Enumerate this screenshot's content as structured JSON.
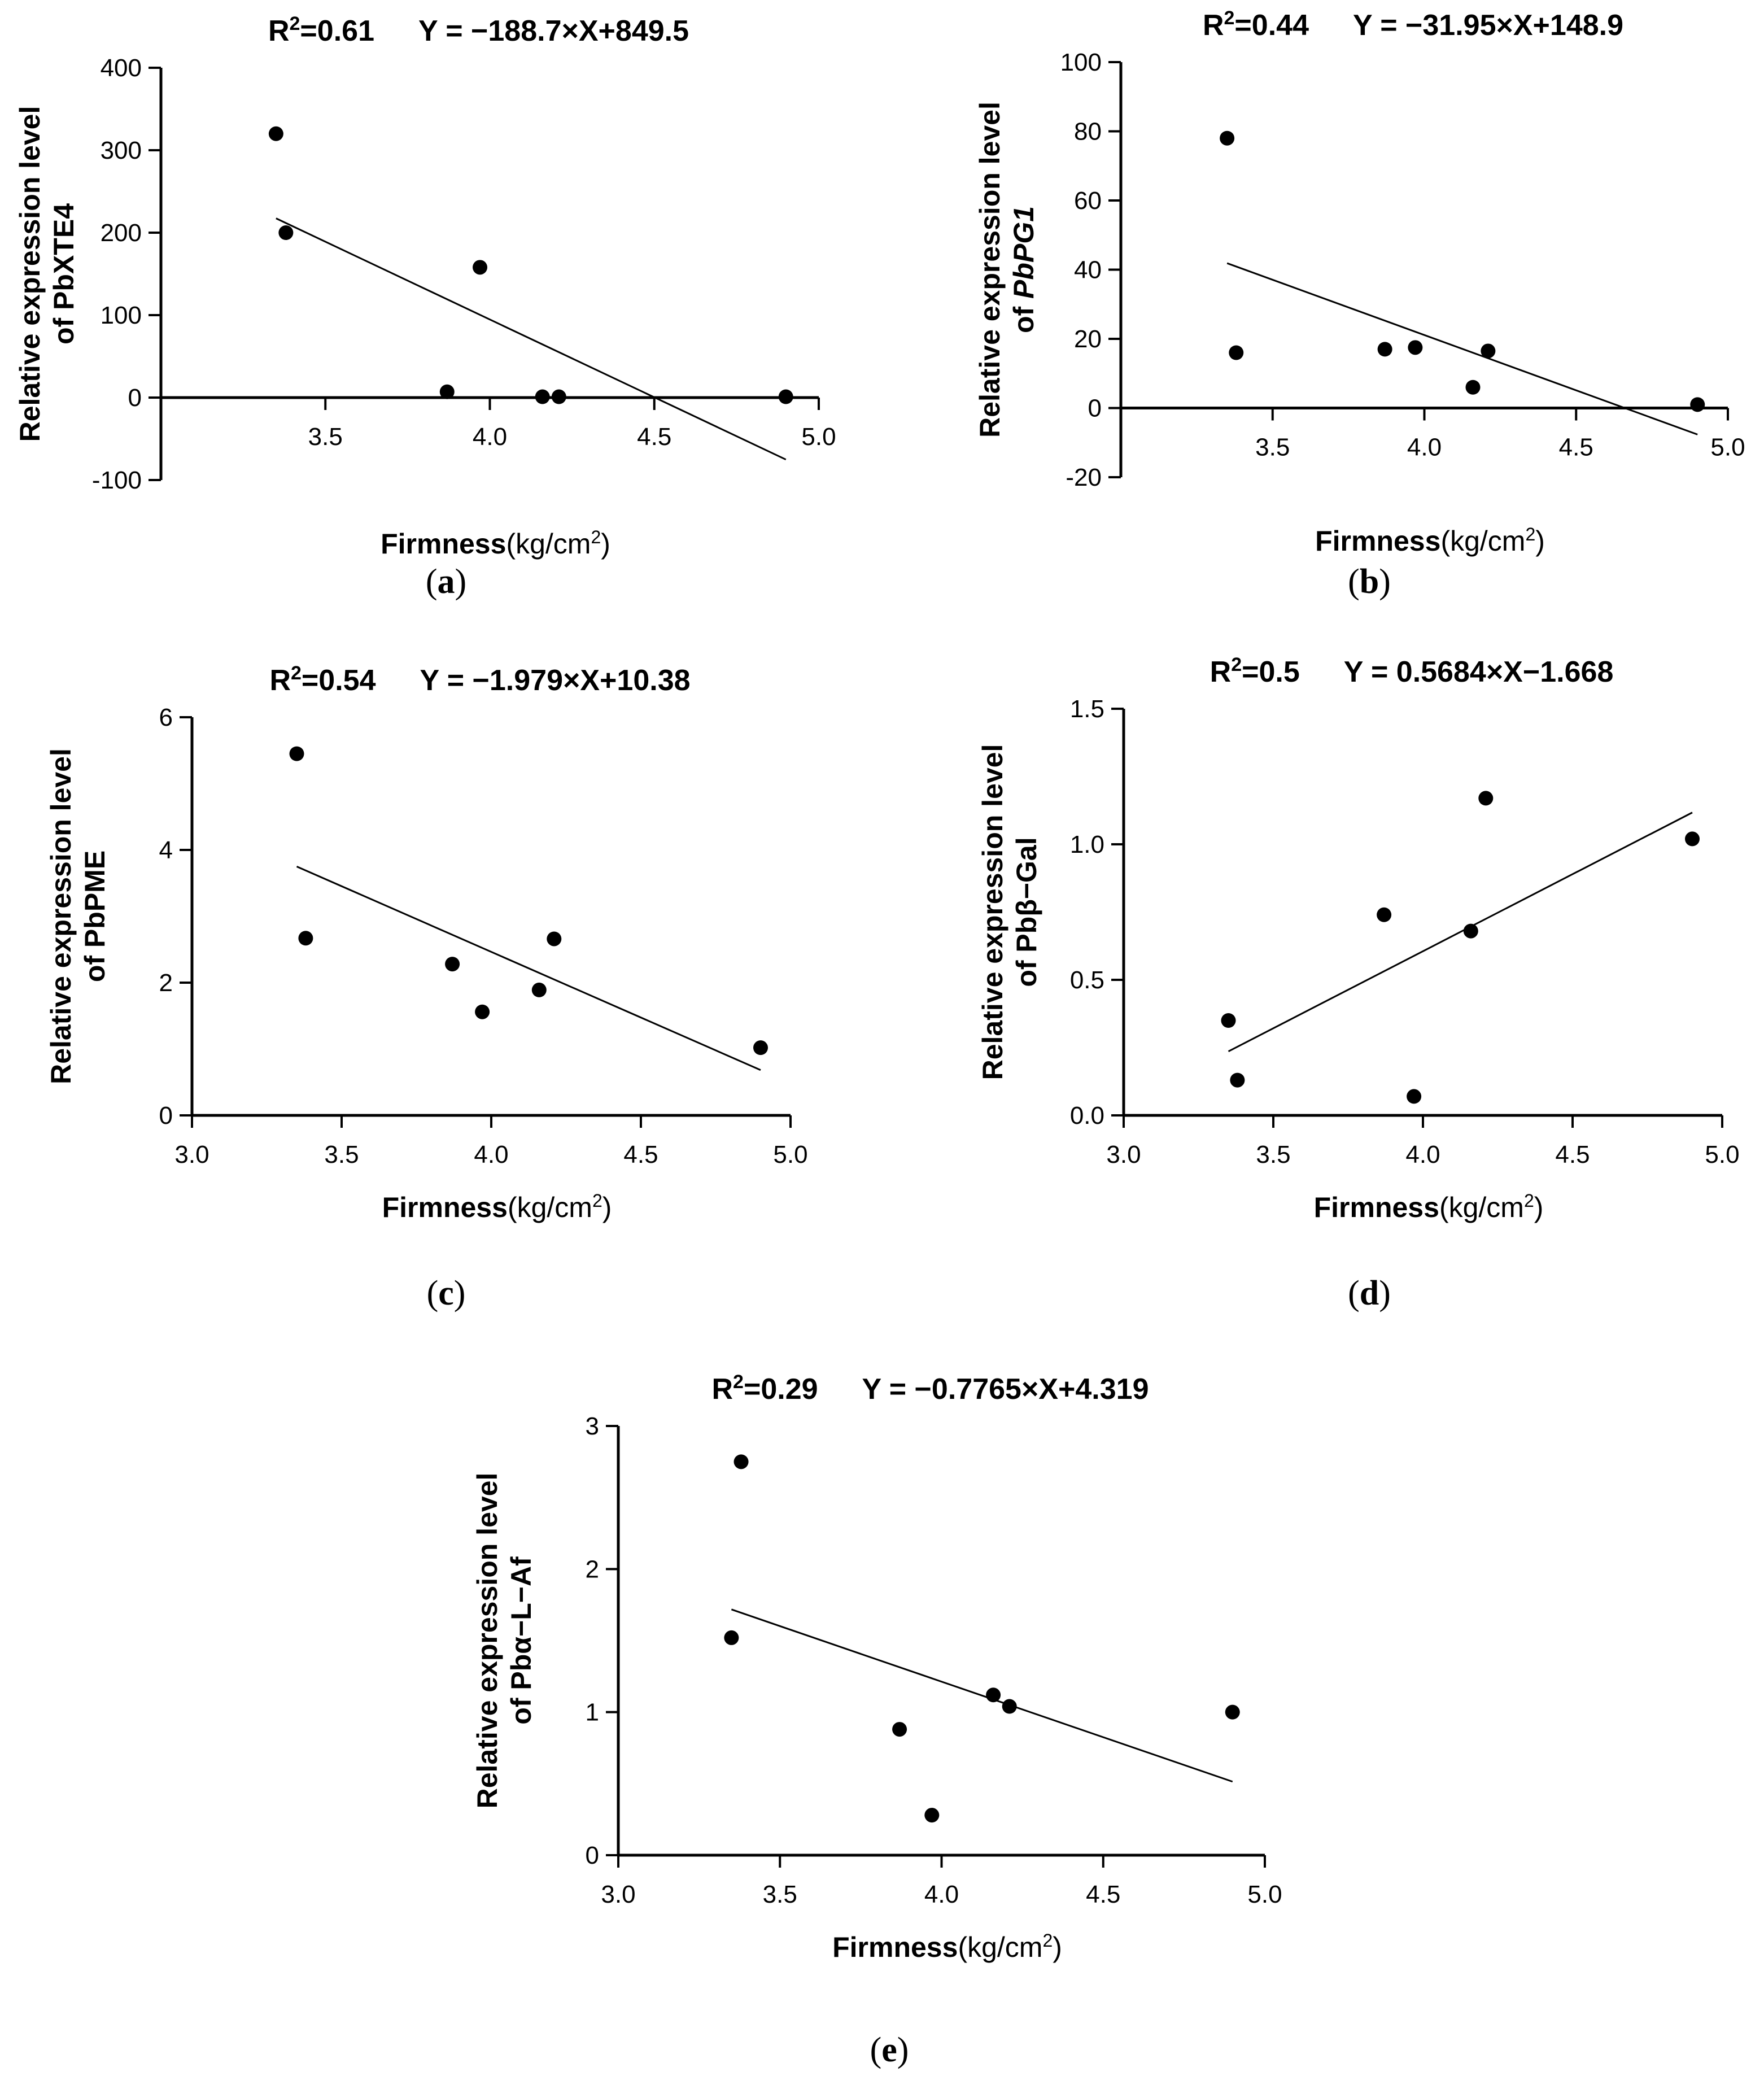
{
  "chart_data": [
    {
      "type": "scatter",
      "panel_label": "(a)",
      "r2_label": "R",
      "r2_sup": "2",
      "r2_value": "=0.61",
      "equation": "Y = −188.7×X+849.5",
      "ylabel_line1": "Relative expression level",
      "ylabel_line2_prefix": "of ",
      "ylabel_gene": "PbXTE4",
      "ylabel_gene_italic": false,
      "xlabel": "Firmness",
      "xlabel_unit_open": "(kg/cm",
      "xlabel_unit_sup": "2",
      "xlabel_unit_close": ")",
      "xlim": [
        3.0,
        5.0
      ],
      "xticks": [
        3.5,
        4.0,
        4.5,
        5.0
      ],
      "xtick_labels": [
        "3.5",
        "4.0",
        "4.5",
        "5.0"
      ],
      "ylim": [
        -100,
        400
      ],
      "yticks": [
        -100,
        0,
        100,
        200,
        300,
        400
      ],
      "ytick_labels": [
        "-100",
        "0",
        "100",
        "200",
        "300",
        "400"
      ],
      "x_axis_at_zero": true,
      "fit": {
        "slope": -188.7,
        "intercept": 849.5,
        "x_start": 3.35,
        "x_end": 4.9
      },
      "points": [
        {
          "x": 3.35,
          "y": 320
        },
        {
          "x": 3.38,
          "y": 200
        },
        {
          "x": 3.87,
          "y": 7
        },
        {
          "x": 3.97,
          "y": 158
        },
        {
          "x": 4.16,
          "y": 1
        },
        {
          "x": 4.21,
          "y": 1
        },
        {
          "x": 4.9,
          "y": 1
        }
      ]
    },
    {
      "type": "scatter",
      "panel_label": "(b)",
      "r2_label": "R",
      "r2_sup": "2",
      "r2_value": "=0.44",
      "equation": "Y = −31.95×X+148.9",
      "ylabel_line1": "Relative expression level",
      "ylabel_line2_prefix": "of ",
      "ylabel_gene": "PbPG1",
      "ylabel_gene_italic": true,
      "xlabel": "Firmness",
      "xlabel_unit_open": "(kg/cm",
      "xlabel_unit_sup": "2",
      "xlabel_unit_close": ")",
      "xlim": [
        3.0,
        5.0
      ],
      "xticks": [
        3.5,
        4.0,
        4.5,
        5.0
      ],
      "xtick_labels": [
        "3.5",
        "4.0",
        "4.5",
        "5.0"
      ],
      "ylim": [
        -20,
        100
      ],
      "yticks": [
        -20,
        0,
        20,
        40,
        60,
        80,
        100
      ],
      "ytick_labels": [
        "-20",
        "0",
        "20",
        "40",
        "60",
        "80",
        "100"
      ],
      "x_axis_at_zero": true,
      "fit": {
        "slope": -31.95,
        "intercept": 148.9,
        "x_start": 3.35,
        "x_end": 4.9
      },
      "points": [
        {
          "x": 3.35,
          "y": 78
        },
        {
          "x": 3.38,
          "y": 16
        },
        {
          "x": 3.87,
          "y": 17
        },
        {
          "x": 3.97,
          "y": 17.5
        },
        {
          "x": 4.16,
          "y": 6
        },
        {
          "x": 4.21,
          "y": 16.5
        },
        {
          "x": 4.9,
          "y": 1
        }
      ]
    },
    {
      "type": "scatter",
      "panel_label": "(c)",
      "r2_label": "R",
      "r2_sup": "2",
      "r2_value": "=0.54",
      "equation": "Y = −1.979×X+10.38",
      "ylabel_line1": "Relative expression level",
      "ylabel_line2_prefix": "of ",
      "ylabel_gene": "PbPME",
      "ylabel_gene_italic": false,
      "xlabel": "Firmness",
      "xlabel_unit_open": "(kg/cm",
      "xlabel_unit_sup": "2",
      "xlabel_unit_close": ")",
      "xlim": [
        3.0,
        5.0
      ],
      "xticks": [
        3.0,
        3.5,
        4.0,
        4.5,
        5.0
      ],
      "xtick_labels": [
        "3.0",
        "3.5",
        "4.0",
        "4.5",
        "5.0"
      ],
      "ylim": [
        0,
        6
      ],
      "yticks": [
        0,
        2,
        4,
        6
      ],
      "ytick_labels": [
        "0",
        "2",
        "4",
        "6"
      ],
      "x_axis_at_zero": false,
      "fit": {
        "slope": -1.979,
        "intercept": 10.38,
        "x_start": 3.35,
        "x_end": 4.9
      },
      "points": [
        {
          "x": 3.35,
          "y": 5.45
        },
        {
          "x": 3.38,
          "y": 2.67
        },
        {
          "x": 3.87,
          "y": 2.28
        },
        {
          "x": 3.97,
          "y": 1.56
        },
        {
          "x": 4.16,
          "y": 1.89
        },
        {
          "x": 4.21,
          "y": 2.66
        },
        {
          "x": 4.9,
          "y": 1.02
        }
      ]
    },
    {
      "type": "scatter",
      "panel_label": "(d)",
      "r2_label": "R",
      "r2_sup": "2",
      "r2_value": "=0.5",
      "equation": "Y = 0.5684×X−1.668",
      "ylabel_line1": "Relative expression level",
      "ylabel_line2_prefix": "of ",
      "ylabel_gene": "Pbβ−Gal",
      "ylabel_gene_italic": false,
      "xlabel": "Firmness",
      "xlabel_unit_open": "(kg/cm",
      "xlabel_unit_sup": "2",
      "xlabel_unit_close": ")",
      "xlim": [
        3.0,
        5.0
      ],
      "xticks": [
        3.0,
        3.5,
        4.0,
        4.5,
        5.0
      ],
      "xtick_labels": [
        "3.0",
        "3.5",
        "4.0",
        "4.5",
        "5.0"
      ],
      "ylim": [
        0,
        1.5
      ],
      "yticks": [
        0,
        0.5,
        1.0,
        1.5
      ],
      "ytick_labels": [
        "0.0",
        "0.5",
        "1.0",
        "1.5"
      ],
      "x_axis_at_zero": false,
      "fit": {
        "slope": 0.5684,
        "intercept": -1.668,
        "x_start": 3.35,
        "x_end": 4.9
      },
      "points": [
        {
          "x": 3.35,
          "y": 0.35
        },
        {
          "x": 3.38,
          "y": 0.13
        },
        {
          "x": 3.87,
          "y": 0.74
        },
        {
          "x": 3.97,
          "y": 0.07
        },
        {
          "x": 4.16,
          "y": 0.68
        },
        {
          "x": 4.21,
          "y": 1.17
        },
        {
          "x": 4.9,
          "y": 1.02
        }
      ]
    },
    {
      "type": "scatter",
      "panel_label": "(e)",
      "r2_label": "R",
      "r2_sup": "2",
      "r2_value": "=0.29",
      "equation": "Y = −0.7765×X+4.319",
      "ylabel_line1": "Relative expression level",
      "ylabel_line2_prefix": "of ",
      "ylabel_gene": "Pbα−L−Af",
      "ylabel_gene_italic": false,
      "xlabel": "Firmness",
      "xlabel_unit_open": "(kg/cm",
      "xlabel_unit_sup": "2",
      "xlabel_unit_close": ")",
      "xlim": [
        3.0,
        5.0
      ],
      "xticks": [
        3.0,
        3.5,
        4.0,
        4.5,
        5.0
      ],
      "xtick_labels": [
        "3.0",
        "3.5",
        "4.0",
        "4.5",
        "5.0"
      ],
      "ylim": [
        0,
        3
      ],
      "yticks": [
        0,
        1,
        2,
        3
      ],
      "ytick_labels": [
        "0",
        "1",
        "2",
        "3"
      ],
      "x_axis_at_zero": false,
      "fit": {
        "slope": -0.7765,
        "intercept": 4.319,
        "x_start": 3.35,
        "x_end": 4.9
      },
      "points": [
        {
          "x": 3.35,
          "y": 1.52
        },
        {
          "x": 3.38,
          "y": 2.75
        },
        {
          "x": 3.87,
          "y": 0.88
        },
        {
          "x": 3.97,
          "y": 0.28
        },
        {
          "x": 4.16,
          "y": 1.12
        },
        {
          "x": 4.21,
          "y": 1.04
        },
        {
          "x": 4.9,
          "y": 1.0
        }
      ]
    }
  ]
}
